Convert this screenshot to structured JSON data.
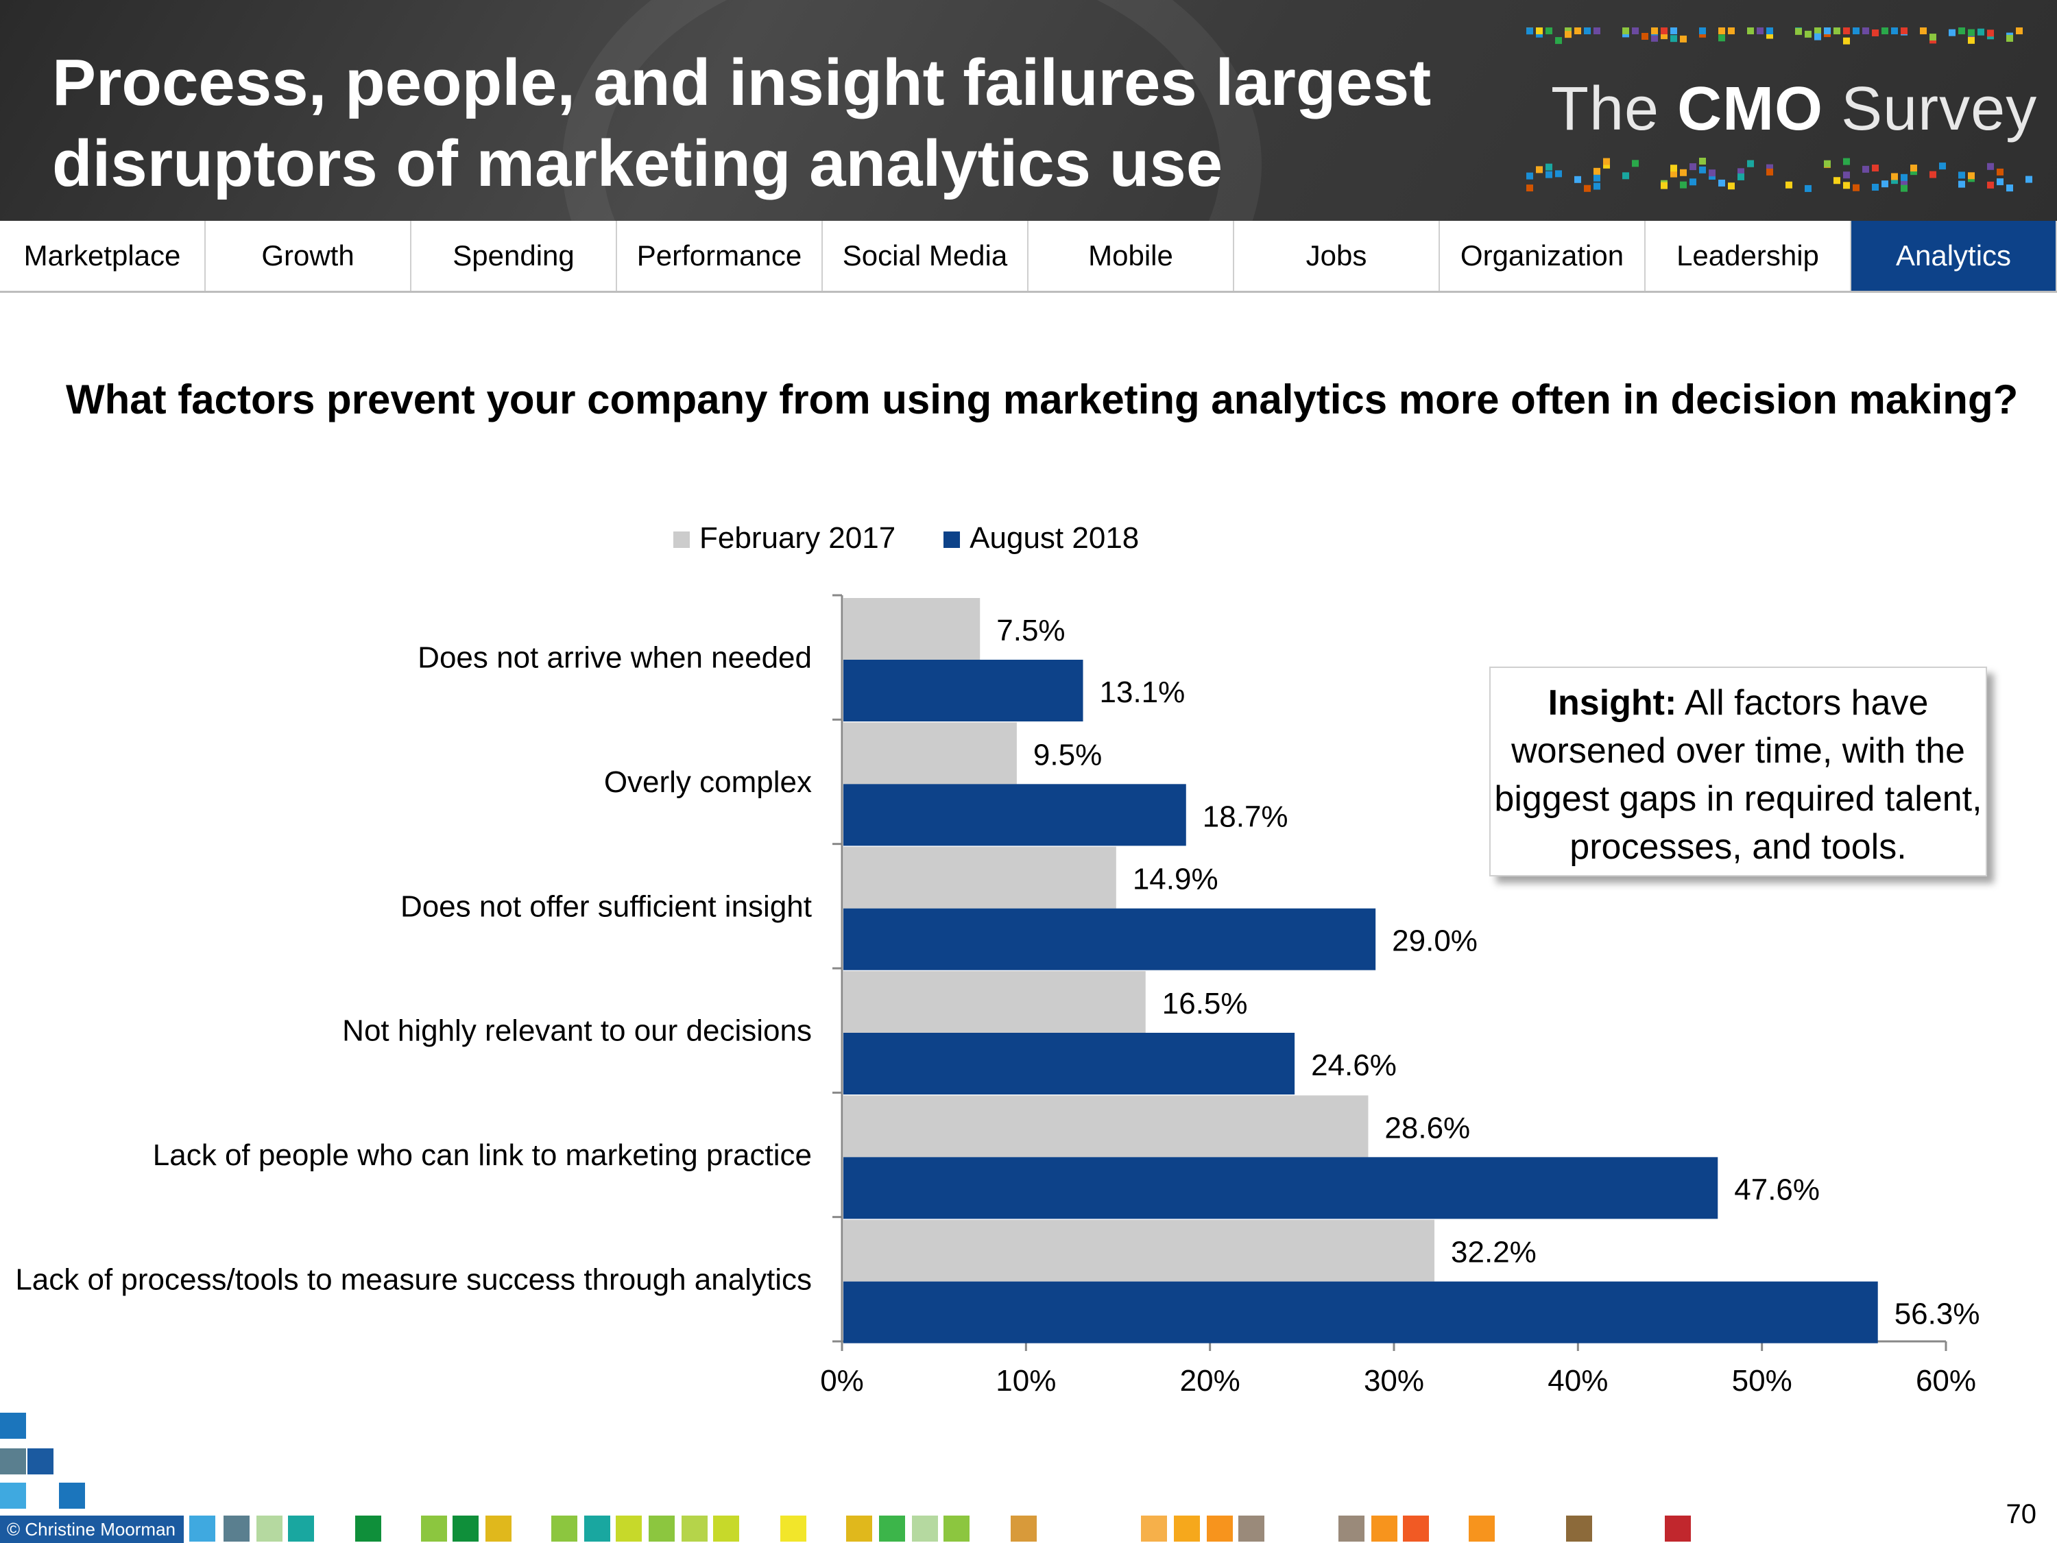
{
  "header": {
    "title": "Process, people, and insight failures largest disruptors of marketing analytics use",
    "logo_prefix": "The ",
    "logo_bold": "CMO",
    "logo_suffix": " Survey"
  },
  "nav": {
    "tabs": [
      "Marketplace",
      "Growth",
      "Spending",
      "Performance",
      "Social Media",
      "Mobile",
      "Jobs",
      "Organization",
      "Leadership",
      "Analytics"
    ],
    "active": "Analytics"
  },
  "question": "What factors prevent your company from using marketing analytics more often in decision making?",
  "insight": {
    "label": "Insight:",
    "text": " All factors have worsened over time, with the biggest gaps in required talent, processes, and tools."
  },
  "colors": {
    "feb2017": "#cccccc",
    "aug2018": "#0d4289",
    "nav_active": "#0d4289"
  },
  "chart_data": {
    "type": "bar",
    "orientation": "horizontal",
    "categories": [
      "Does not arrive when needed",
      "Overly complex",
      "Does not offer sufficient insight",
      "Not highly relevant to our decisions",
      "Lack of people who can link to marketing practice",
      "Lack of process/tools to measure success through analytics"
    ],
    "series": [
      {
        "name": "February 2017",
        "values": [
          7.5,
          9.5,
          14.9,
          16.5,
          28.6,
          32.2
        ],
        "labels": [
          "7.5%",
          "9.5%",
          "14.9%",
          "16.5%",
          "28.6%",
          "32.2%"
        ]
      },
      {
        "name": "August 2018",
        "values": [
          13.1,
          18.7,
          29.0,
          24.6,
          47.6,
          56.3
        ],
        "labels": [
          "13.1%",
          "18.7%",
          "29.0%",
          "24.6%",
          "47.6%",
          "56.3%"
        ]
      }
    ],
    "xlim": [
      0,
      60
    ],
    "xticks": [
      "0%",
      "10%",
      "20%",
      "30%",
      "40%",
      "50%",
      "60%"
    ],
    "legend": "top",
    "grid": false
  },
  "footer": {
    "copyright": "© Christine Moorman",
    "page": "70"
  }
}
